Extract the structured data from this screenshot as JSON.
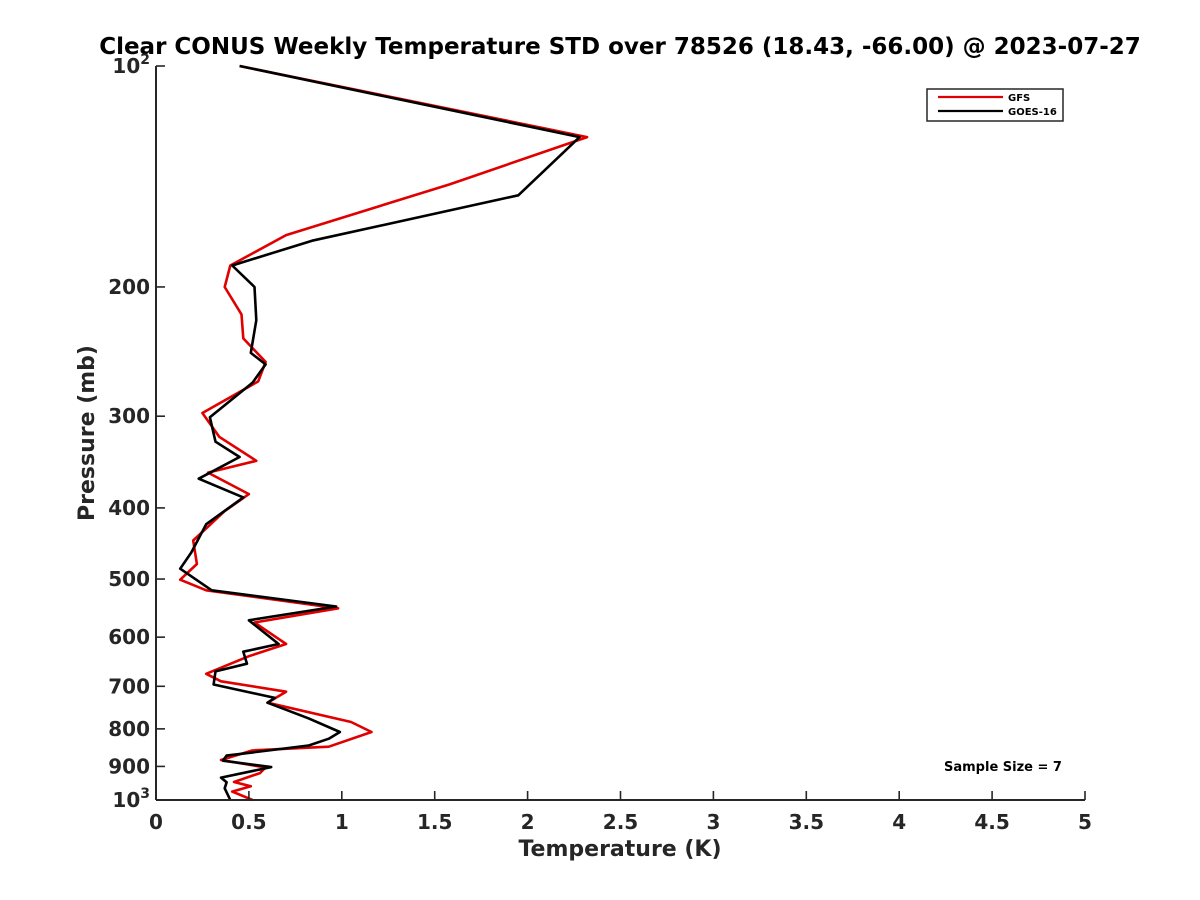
{
  "chart_data": {
    "type": "line",
    "title": "Clear CONUS Weekly Temperature STD over 78526 (18.43, -66.00) @ 2023-07-27",
    "xlabel": "Temperature (K)",
    "ylabel": "Pressure (mb)",
    "xlim": [
      0,
      5
    ],
    "ylim": [
      100,
      1000
    ],
    "y_scale": "log",
    "y_reversed": true,
    "x_ticks": [
      0,
      0.5,
      1,
      1.5,
      2,
      2.5,
      3,
      3.5,
      4,
      4.5,
      5
    ],
    "x_tick_labels": [
      "0",
      "0.5",
      "1",
      "1.5",
      "2",
      "2.5",
      "3",
      "3.5",
      "4",
      "4.5",
      "5"
    ],
    "y_ticks": [
      {
        "value": 100,
        "base": "10",
        "exp": "2"
      },
      {
        "value": 200,
        "label": "200"
      },
      {
        "value": 300,
        "label": "300"
      },
      {
        "value": 400,
        "label": "400"
      },
      {
        "value": 500,
        "label": "500"
      },
      {
        "value": 600,
        "label": "600"
      },
      {
        "value": 700,
        "label": "700"
      },
      {
        "value": 800,
        "label": "800"
      },
      {
        "value": 900,
        "label": "900"
      },
      {
        "value": 1000,
        "base": "10",
        "exp": "3"
      }
    ],
    "legend_position": "top-right",
    "grid": false,
    "annotation": "Sample Size = 7",
    "series": [
      {
        "name": "GFS",
        "color": "#e00000",
        "points": [
          [
            0.45,
            100
          ],
          [
            2.32,
            125
          ],
          [
            1.58,
            145
          ],
          [
            0.7,
            170
          ],
          [
            0.4,
            187
          ],
          [
            0.37,
            200
          ],
          [
            0.46,
            218
          ],
          [
            0.47,
            235
          ],
          [
            0.59,
            253
          ],
          [
            0.55,
            269
          ],
          [
            0.25,
            297
          ],
          [
            0.34,
            320
          ],
          [
            0.54,
            345
          ],
          [
            0.28,
            358
          ],
          [
            0.5,
            383
          ],
          [
            0.37,
            404
          ],
          [
            0.2,
            443
          ],
          [
            0.22,
            477
          ],
          [
            0.13,
            501
          ],
          [
            0.27,
            518
          ],
          [
            0.98,
            548
          ],
          [
            0.53,
            573
          ],
          [
            0.7,
            613
          ],
          [
            0.5,
            637
          ],
          [
            0.27,
            673
          ],
          [
            0.35,
            689
          ],
          [
            0.7,
            712
          ],
          [
            0.6,
            737
          ],
          [
            1.05,
            783
          ],
          [
            1.16,
            808
          ],
          [
            0.93,
            846
          ],
          [
            0.52,
            856
          ],
          [
            0.35,
            882
          ],
          [
            0.59,
            903
          ],
          [
            0.56,
            919
          ],
          [
            0.42,
            945
          ],
          [
            0.51,
            958
          ],
          [
            0.41,
            974
          ],
          [
            0.52,
            1000
          ]
        ]
      },
      {
        "name": "GOES-16",
        "color": "#000000",
        "points": [
          [
            0.45,
            100
          ],
          [
            2.28,
            125
          ],
          [
            1.95,
            150
          ],
          [
            0.84,
            173
          ],
          [
            0.41,
            187
          ],
          [
            0.53,
            200
          ],
          [
            0.54,
            222
          ],
          [
            0.51,
            246
          ],
          [
            0.59,
            255
          ],
          [
            0.52,
            270
          ],
          [
            0.29,
            301
          ],
          [
            0.32,
            325
          ],
          [
            0.45,
            341
          ],
          [
            0.23,
            365
          ],
          [
            0.47,
            387
          ],
          [
            0.27,
            421
          ],
          [
            0.19,
            460
          ],
          [
            0.13,
            484
          ],
          [
            0.3,
            518
          ],
          [
            0.97,
            545
          ],
          [
            0.5,
            569
          ],
          [
            0.66,
            613
          ],
          [
            0.47,
            628
          ],
          [
            0.49,
            652
          ],
          [
            0.32,
            668
          ],
          [
            0.31,
            696
          ],
          [
            0.64,
            726
          ],
          [
            0.6,
            737
          ],
          [
            0.82,
            774
          ],
          [
            0.99,
            808
          ],
          [
            0.93,
            825
          ],
          [
            0.82,
            843
          ],
          [
            0.38,
            870
          ],
          [
            0.36,
            884
          ],
          [
            0.62,
            902
          ],
          [
            0.35,
            932
          ],
          [
            0.38,
            946
          ],
          [
            0.37,
            964
          ],
          [
            0.4,
            1000
          ]
        ]
      }
    ]
  }
}
